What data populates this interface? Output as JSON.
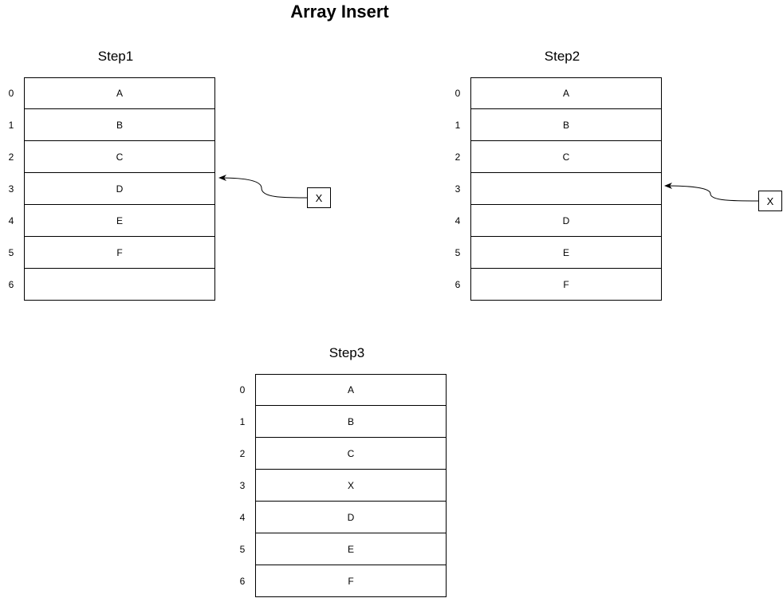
{
  "title": "Array Insert",
  "steps": [
    {
      "label": "Step1",
      "indices": [
        "0",
        "1",
        "2",
        "3",
        "4",
        "5",
        "6"
      ],
      "cells": [
        "A",
        "B",
        "C",
        "D",
        "E",
        "F",
        ""
      ],
      "insert_value": "X"
    },
    {
      "label": "Step2",
      "indices": [
        "0",
        "1",
        "2",
        "3",
        "4",
        "5",
        "6"
      ],
      "cells": [
        "A",
        "B",
        "C",
        "",
        "D",
        "E",
        "F"
      ],
      "insert_value": "X"
    },
    {
      "label": "Step3",
      "indices": [
        "0",
        "1",
        "2",
        "3",
        "4",
        "5",
        "6"
      ],
      "cells": [
        "A",
        "B",
        "C",
        "X",
        "D",
        "E",
        "F"
      ]
    }
  ]
}
